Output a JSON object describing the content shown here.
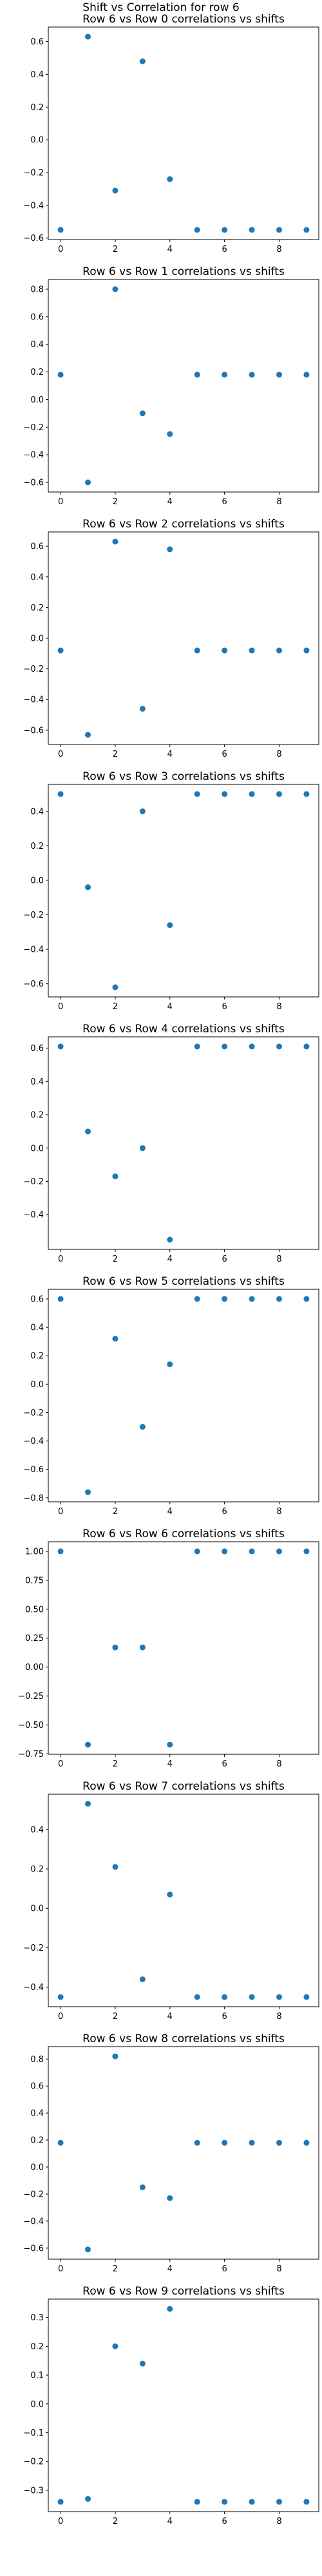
{
  "figure": {
    "suptitle": "Shift vs Correlation for row 6"
  },
  "style": {
    "marker_color": "#1f77b4"
  },
  "chart_data": [
    {
      "type": "scatter",
      "title": "Row 6 vs Row 0 correlations vs shifts",
      "x": [
        0,
        1,
        2,
        3,
        4,
        5,
        6,
        7,
        8,
        9
      ],
      "y": [
        -0.55,
        0.63,
        -0.31,
        0.48,
        -0.24,
        -0.55,
        -0.55,
        -0.55,
        -0.55,
        -0.55
      ],
      "xlim": [
        -0.45,
        9.45
      ],
      "ylim": [
        -0.609,
        0.689
      ],
      "xticks": [
        0,
        2,
        4,
        6,
        8
      ],
      "yticks": [
        -0.6,
        -0.4,
        -0.2,
        0.0,
        0.2,
        0.4,
        0.6
      ],
      "ytick_labels": [
        "−0.6",
        "−0.4",
        "−0.2",
        "0.0",
        "0.2",
        "0.4",
        "0.6"
      ],
      "xlabel": "",
      "ylabel": ""
    },
    {
      "type": "scatter",
      "title": "Row 6 vs Row 1 correlations vs shifts",
      "x": [
        0,
        1,
        2,
        3,
        4,
        5,
        6,
        7,
        8,
        9
      ],
      "y": [
        0.18,
        -0.6,
        0.8,
        -0.1,
        -0.25,
        0.18,
        0.18,
        0.18,
        0.18,
        0.18
      ],
      "xlim": [
        -0.45,
        9.45
      ],
      "ylim": [
        -0.67,
        0.87
      ],
      "xticks": [
        0,
        2,
        4,
        6,
        8
      ],
      "yticks": [
        -0.6,
        -0.4,
        -0.2,
        0.0,
        0.2,
        0.4,
        0.6,
        0.8
      ],
      "ytick_labels": [
        "−0.6",
        "−0.4",
        "−0.2",
        "0.0",
        "0.2",
        "0.4",
        "0.6",
        "0.8"
      ],
      "xlabel": "",
      "ylabel": ""
    },
    {
      "type": "scatter",
      "title": "Row 6 vs Row 2 correlations vs shifts",
      "x": [
        0,
        1,
        2,
        3,
        4,
        5,
        6,
        7,
        8,
        9
      ],
      "y": [
        -0.08,
        -0.63,
        0.63,
        -0.46,
        0.58,
        -0.08,
        -0.08,
        -0.08,
        -0.08,
        -0.08
      ],
      "xlim": [
        -0.45,
        9.45
      ],
      "ylim": [
        -0.693,
        0.693
      ],
      "xticks": [
        0,
        2,
        4,
        6,
        8
      ],
      "yticks": [
        -0.6,
        -0.4,
        -0.2,
        0.0,
        0.2,
        0.4,
        0.6
      ],
      "ytick_labels": [
        "−0.6",
        "−0.4",
        "−0.2",
        "0.0",
        "0.2",
        "0.4",
        "0.6"
      ],
      "xlabel": "",
      "ylabel": ""
    },
    {
      "type": "scatter",
      "title": "Row 6 vs Row 3 correlations vs shifts",
      "x": [
        0,
        1,
        2,
        3,
        4,
        5,
        6,
        7,
        8,
        9
      ],
      "y": [
        0.5,
        -0.04,
        -0.62,
        0.4,
        -0.26,
        0.5,
        0.5,
        0.5,
        0.5,
        0.5
      ],
      "xlim": [
        -0.45,
        9.45
      ],
      "ylim": [
        -0.676,
        0.556
      ],
      "xticks": [
        0,
        2,
        4,
        6,
        8
      ],
      "yticks": [
        -0.6,
        -0.4,
        -0.2,
        0.0,
        0.2,
        0.4
      ],
      "ytick_labels": [
        "−0.6",
        "−0.4",
        "−0.2",
        "0.0",
        "0.2",
        "0.4"
      ],
      "xlabel": "",
      "ylabel": ""
    },
    {
      "type": "scatter",
      "title": "Row 6 vs Row 4 correlations vs shifts",
      "x": [
        0,
        1,
        2,
        3,
        4,
        5,
        6,
        7,
        8,
        9
      ],
      "y": [
        0.61,
        0.1,
        -0.17,
        0.0,
        -0.55,
        0.61,
        0.61,
        0.61,
        0.61,
        0.61
      ],
      "xlim": [
        -0.45,
        9.45
      ],
      "ylim": [
        -0.608,
        0.668
      ],
      "xticks": [
        0,
        2,
        4,
        6,
        8
      ],
      "yticks": [
        -0.4,
        -0.2,
        0.0,
        0.2,
        0.4,
        0.6
      ],
      "ytick_labels": [
        "−0.4",
        "−0.2",
        "0.0",
        "0.2",
        "0.4",
        "0.6"
      ],
      "xlabel": "",
      "ylabel": ""
    },
    {
      "type": "scatter",
      "title": "Row 6 vs Row 5 correlations vs shifts",
      "x": [
        0,
        1,
        2,
        3,
        4,
        5,
        6,
        7,
        8,
        9
      ],
      "y": [
        0.6,
        -0.76,
        0.32,
        -0.3,
        0.14,
        0.6,
        0.6,
        0.6,
        0.6,
        0.6
      ],
      "xlim": [
        -0.45,
        9.45
      ],
      "ylim": [
        -0.828,
        0.668
      ],
      "xticks": [
        0,
        2,
        4,
        6,
        8
      ],
      "yticks": [
        -0.8,
        -0.6,
        -0.4,
        -0.2,
        0.0,
        0.2,
        0.4,
        0.6
      ],
      "ytick_labels": [
        "−0.8",
        "−0.6",
        "−0.4",
        "−0.2",
        "0.0",
        "0.2",
        "0.4",
        "0.6"
      ],
      "xlabel": "",
      "ylabel": ""
    },
    {
      "type": "scatter",
      "title": "Row 6 vs Row 6 correlations vs shifts",
      "x": [
        0,
        1,
        2,
        3,
        4,
        5,
        6,
        7,
        8,
        9
      ],
      "y": [
        1.0,
        -0.67,
        0.17,
        0.17,
        -0.67,
        1.0,
        1.0,
        1.0,
        1.0,
        1.0
      ],
      "xlim": [
        -0.45,
        9.45
      ],
      "ylim": [
        -0.753,
        1.083
      ],
      "xticks": [
        0,
        2,
        4,
        6,
        8
      ],
      "yticks": [
        -0.75,
        -0.5,
        -0.25,
        0.0,
        0.25,
        0.5,
        0.75,
        1.0
      ],
      "ytick_labels": [
        "−0.75",
        "−0.50",
        "−0.25",
        "0.00",
        "0.25",
        "0.50",
        "0.75",
        "1.00"
      ],
      "xlabel": "",
      "ylabel": ""
    },
    {
      "type": "scatter",
      "title": "Row 6 vs Row 7 correlations vs shifts",
      "x": [
        0,
        1,
        2,
        3,
        4,
        5,
        6,
        7,
        8,
        9
      ],
      "y": [
        -0.45,
        0.53,
        0.21,
        -0.36,
        0.07,
        -0.45,
        -0.45,
        -0.45,
        -0.45,
        -0.45
      ],
      "xlim": [
        -0.45,
        9.45
      ],
      "ylim": [
        -0.499,
        0.579
      ],
      "xticks": [
        0,
        2,
        4,
        6,
        8
      ],
      "yticks": [
        -0.4,
        -0.2,
        0.0,
        0.2,
        0.4
      ],
      "ytick_labels": [
        "−0.4",
        "−0.2",
        "0.0",
        "0.2",
        "0.4"
      ],
      "xlabel": "",
      "ylabel": ""
    },
    {
      "type": "scatter",
      "title": "Row 6 vs Row 8 correlations vs shifts",
      "x": [
        0,
        1,
        2,
        3,
        4,
        5,
        6,
        7,
        8,
        9
      ],
      "y": [
        0.18,
        -0.61,
        0.82,
        -0.15,
        -0.23,
        0.18,
        0.18,
        0.18,
        0.18,
        0.18
      ],
      "xlim": [
        -0.45,
        9.45
      ],
      "ylim": [
        -0.682,
        0.892
      ],
      "xticks": [
        0,
        2,
        4,
        6,
        8
      ],
      "yticks": [
        -0.6,
        -0.4,
        -0.2,
        0.0,
        0.2,
        0.4,
        0.6,
        0.8
      ],
      "ytick_labels": [
        "−0.6",
        "−0.4",
        "−0.2",
        "0.0",
        "0.2",
        "0.4",
        "0.6",
        "0.8"
      ],
      "xlabel": "",
      "ylabel": ""
    },
    {
      "type": "scatter",
      "title": "Row 6 vs Row 9 correlations vs shifts",
      "x": [
        0,
        1,
        2,
        3,
        4,
        5,
        6,
        7,
        8,
        9
      ],
      "y": [
        -0.34,
        -0.33,
        0.2,
        0.14,
        0.33,
        -0.34,
        -0.34,
        -0.34,
        -0.34,
        -0.34
      ],
      "xlim": [
        -0.45,
        9.45
      ],
      "ylim": [
        -0.374,
        0.364
      ],
      "xticks": [
        0,
        2,
        4,
        6,
        8
      ],
      "yticks": [
        -0.3,
        -0.2,
        -0.1,
        0.0,
        0.1,
        0.2,
        0.3
      ],
      "ytick_labels": [
        "−0.3",
        "−0.2",
        "−0.1",
        "0.0",
        "0.1",
        "0.2",
        "0.3"
      ],
      "xlabel": "",
      "ylabel": ""
    }
  ]
}
